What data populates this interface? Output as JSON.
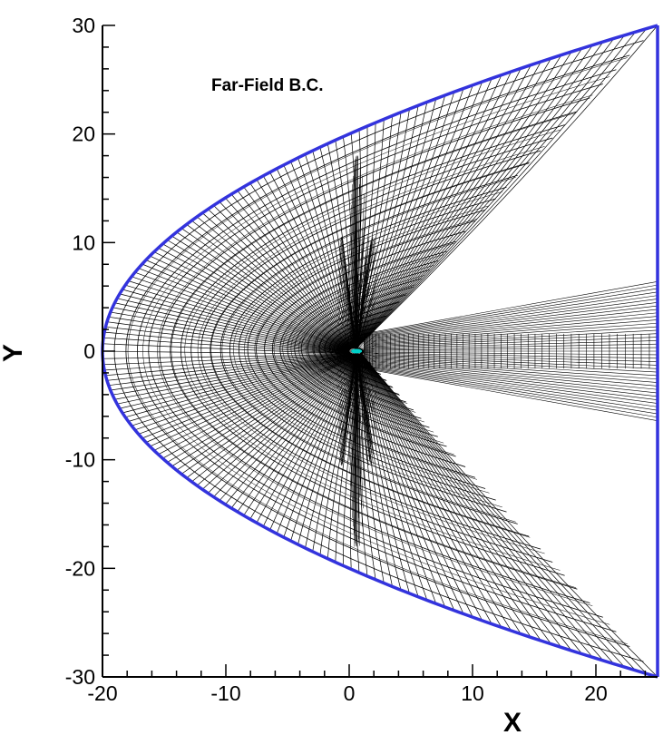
{
  "figure": {
    "annotation": "Far-Field B.C.",
    "x_axis_title": "X",
    "y_axis_title": "Y",
    "x_range": [
      -20,
      25
    ],
    "y_range": [
      -30,
      30
    ],
    "x_major_ticks": [
      -20,
      -10,
      0,
      10,
      20
    ],
    "y_major_ticks": [
      -30,
      -20,
      -10,
      0,
      10,
      20,
      30
    ],
    "x_tick_labels": [
      "-20",
      "-10",
      "0",
      "10",
      "20"
    ],
    "y_tick_labels": [
      "-30",
      "-20",
      "-10",
      "0",
      "10",
      "20",
      "30"
    ],
    "minor_tick_step": 2,
    "boundary": {
      "shape": "parabola",
      "vertex": [
        -20,
        0
      ],
      "passes_through": [
        25,
        30
      ],
      "outflow_x": 25,
      "color": "#3333dd"
    },
    "body": {
      "center": [
        0.6,
        0
      ],
      "color": "#00d0c8"
    },
    "mesh_color": "#000000"
  }
}
